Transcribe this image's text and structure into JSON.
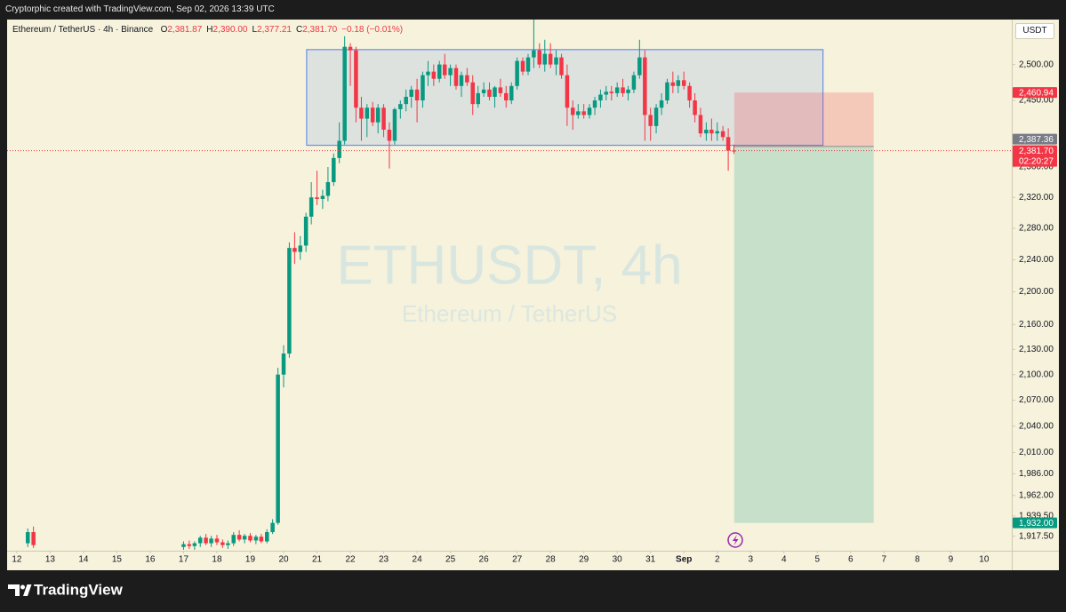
{
  "header": "Cryptorphic created with TradingView.com, Sep 02, 2026 13:39 UTC",
  "brand": "TradingView",
  "chart_data": {
    "type": "candlestick",
    "title": "ETHUSDT, 4h",
    "subtitle": "Ethereum / TetherUS",
    "symbol": "Ethereum / TetherUS · 4h · Binance",
    "ohlc": [
      {
        "key": "O",
        "text": "2,381.87"
      },
      {
        "key": "H",
        "text": "2,390.00"
      },
      {
        "key": "L",
        "text": "2,377.21"
      },
      {
        "key": "C",
        "text": "2,381.70"
      }
    ],
    "change": "−0.18 (−0.01%)",
    "currency": "USDT",
    "up_color": "#089981",
    "down_color": "#f23645",
    "log_scale": true,
    "x": [
      12.33,
      12.5,
      17,
      17.17,
      17.33,
      17.5,
      17.67,
      17.83,
      18,
      18.17,
      18.33,
      18.5,
      18.67,
      18.83,
      19,
      19.17,
      19.33,
      19.5,
      19.67,
      19.83,
      20,
      20.17,
      20.33,
      20.5,
      20.67,
      20.83,
      21,
      21.17,
      21.33,
      21.5,
      21.67,
      21.83,
      22,
      22.17,
      22.33,
      22.5,
      22.67,
      22.83,
      23,
      23.17,
      23.33,
      23.5,
      23.67,
      23.83,
      24,
      24.17,
      24.33,
      24.5,
      24.67,
      24.83,
      25,
      25.17,
      25.33,
      25.5,
      25.67,
      25.83,
      26,
      26.17,
      26.33,
      26.5,
      26.67,
      26.83,
      27,
      27.17,
      27.33,
      27.5,
      27.67,
      27.83,
      28,
      28.17,
      28.33,
      28.5,
      28.67,
      28.83,
      29,
      29.17,
      29.33,
      29.5,
      29.67,
      29.83,
      30,
      30.17,
      30.33,
      30.5,
      30.67,
      30.83,
      31,
      31.17,
      31.33,
      31.5,
      31.67,
      31.83,
      32,
      32.17,
      32.33,
      32.5,
      32.67,
      32.83,
      33,
      33.17,
      33.33,
      33.5
    ],
    "open": [
      1910,
      1922,
      1906,
      1909,
      1907,
      1910,
      1916,
      1910,
      1915,
      1911,
      1908,
      1910,
      1919,
      1914,
      1918,
      1913,
      1917,
      1912,
      1922,
      1932,
      2100,
      2125,
      2255,
      2250,
      2258,
      2295,
      2320,
      2318,
      2322,
      2340,
      2372,
      2395,
      2525,
      2520,
      2440,
      2425,
      2440,
      2420,
      2440,
      2410,
      2395,
      2438,
      2445,
      2455,
      2465,
      2450,
      2485,
      2490,
      2480,
      2500,
      2485,
      2495,
      2470,
      2485,
      2475,
      2445,
      2460,
      2465,
      2455,
      2468,
      2460,
      2450,
      2470,
      2505,
      2490,
      2510,
      2520,
      2500,
      2515,
      2500,
      2510,
      2485,
      2440,
      2430,
      2435,
      2430,
      2440,
      2450,
      2458,
      2462,
      2460,
      2468,
      2460,
      2465,
      2485,
      2510,
      2430,
      2415,
      2440,
      2450,
      2475,
      2470,
      2478,
      2470,
      2450,
      2430,
      2405,
      2410,
      2405,
      2408,
      2400,
      2381.87
    ],
    "high": [
      1926,
      1928,
      1912,
      1913,
      1912,
      1918,
      1920,
      1918,
      1919,
      1914,
      1913,
      1922,
      1924,
      1920,
      1921,
      1919,
      1920,
      1925,
      1936,
      2108,
      2135,
      2262,
      2275,
      2270,
      2300,
      2340,
      2355,
      2330,
      2360,
      2378,
      2420,
      2540,
      2530,
      2525,
      2455,
      2445,
      2448,
      2445,
      2445,
      2420,
      2440,
      2450,
      2465,
      2470,
      2480,
      2490,
      2505,
      2500,
      2505,
      2515,
      2500,
      2500,
      2490,
      2495,
      2485,
      2470,
      2475,
      2475,
      2470,
      2480,
      2470,
      2475,
      2510,
      2510,
      2515,
      2575,
      2530,
      2535,
      2530,
      2520,
      2515,
      2500,
      2450,
      2445,
      2445,
      2445,
      2455,
      2465,
      2470,
      2470,
      2475,
      2480,
      2470,
      2490,
      2535,
      2520,
      2440,
      2445,
      2460,
      2480,
      2490,
      2485,
      2490,
      2475,
      2460,
      2440,
      2420,
      2425,
      2420,
      2415,
      2412,
      2390
    ],
    "low": [
      1906,
      1905,
      1903,
      1904,
      1903,
      1906,
      1908,
      1906,
      1908,
      1905,
      1904,
      1907,
      1912,
      1910,
      1911,
      1909,
      1910,
      1910,
      1920,
      1930,
      2085,
      2120,
      2235,
      2240,
      2250,
      2285,
      2310,
      2305,
      2315,
      2335,
      2365,
      2390,
      2470,
      2420,
      2395,
      2400,
      2415,
      2405,
      2400,
      2358,
      2390,
      2425,
      2435,
      2440,
      2420,
      2440,
      2470,
      2470,
      2475,
      2480,
      2470,
      2465,
      2455,
      2470,
      2430,
      2440,
      2455,
      2450,
      2440,
      2455,
      2440,
      2445,
      2465,
      2485,
      2485,
      2495,
      2495,
      2490,
      2495,
      2485,
      2480,
      2415,
      2410,
      2425,
      2425,
      2425,
      2430,
      2440,
      2450,
      2450,
      2455,
      2455,
      2450,
      2460,
      2480,
      2395,
      2395,
      2405,
      2430,
      2445,
      2460,
      2460,
      2465,
      2440,
      2420,
      2400,
      2395,
      2395,
      2395,
      2395,
      2355,
      2377.21
    ],
    "close": [
      1922,
      1908,
      1909,
      1907,
      1910,
      1916,
      1910,
      1915,
      1911,
      1908,
      1910,
      1919,
      1914,
      1918,
      1913,
      1917,
      1912,
      1922,
      1932,
      2100,
      2125,
      2255,
      2250,
      2258,
      2295,
      2320,
      2318,
      2322,
      2340,
      2372,
      2395,
      2525,
      2520,
      2440,
      2425,
      2440,
      2420,
      2440,
      2410,
      2395,
      2438,
      2445,
      2455,
      2465,
      2450,
      2485,
      2490,
      2480,
      2500,
      2485,
      2495,
      2470,
      2485,
      2475,
      2445,
      2460,
      2465,
      2455,
      2468,
      2460,
      2450,
      2470,
      2505,
      2490,
      2510,
      2520,
      2500,
      2515,
      2500,
      2510,
      2485,
      2440,
      2430,
      2435,
      2430,
      2440,
      2450,
      2458,
      2462,
      2460,
      2468,
      2460,
      2465,
      2485,
      2510,
      2430,
      2415,
      2440,
      2450,
      2475,
      2470,
      2478,
      2470,
      2450,
      2430,
      2405,
      2410,
      2405,
      2408,
      2400,
      2381.87,
      2381.7
    ],
    "xlim": [
      11.71,
      41.83
    ],
    "xticks": [
      12,
      13,
      14,
      15,
      16,
      17,
      18,
      19,
      20,
      21,
      22,
      23,
      24,
      25,
      26,
      27,
      28,
      29,
      30,
      31,
      {
        "value": 32,
        "label": "Sep"
      },
      {
        "value": 33,
        "label": "2"
      },
      {
        "value": 34,
        "label": "3"
      },
      {
        "value": 35,
        "label": "4"
      },
      {
        "value": 36,
        "label": "5"
      },
      {
        "value": 37,
        "label": "6"
      },
      {
        "value": 38,
        "label": "7"
      },
      {
        "value": 39,
        "label": "8"
      },
      {
        "value": 40,
        "label": "9"
      },
      {
        "value": 41,
        "label": "10"
      }
    ],
    "ylim": [
      1902,
      2564
    ],
    "yticks": [
      {
        "value": 2500,
        "label": "2,500.00"
      },
      {
        "value": 2450,
        "label": "2,450.00"
      },
      {
        "value": 2360,
        "label": "2,360.00"
      },
      {
        "value": 2320,
        "label": "2,320.00"
      },
      {
        "value": 2280,
        "label": "2,280.00"
      },
      {
        "value": 2240,
        "label": "2,240.00"
      },
      {
        "value": 2200,
        "label": "2,200.00"
      },
      {
        "value": 2160,
        "label": "2,160.00"
      },
      {
        "value": 2130,
        "label": "2,130.00"
      },
      {
        "value": 2100,
        "label": "2,100.00"
      },
      {
        "value": 2070,
        "label": "2,070.00"
      },
      {
        "value": 2040,
        "label": "2,040.00"
      },
      {
        "value": 2010,
        "label": "2,010.00"
      },
      {
        "value": 1986,
        "label": "1,986.00"
      },
      {
        "value": 1962,
        "label": "1,962.00"
      },
      {
        "value": 1939.5,
        "label": "1,939.50"
      },
      {
        "value": 1917.5,
        "label": "1,917.50"
      }
    ],
    "rectangle": {
      "x": [
        20.69,
        36.17
      ],
      "y": [
        2389,
        2521
      ]
    },
    "position": {
      "x": [
        33.51,
        37.69
      ],
      "entry": 2387.36,
      "stop": 2460.94,
      "target": 1932
    },
    "price_labels": [
      {
        "value": 2460.94,
        "label": "2,460.94",
        "color": "#f23645"
      },
      {
        "value": 2387.36,
        "label": "2,387.36",
        "color": "#787b86"
      },
      {
        "value": 2381.7,
        "label": "2,381.70",
        "color": "#f23645",
        "countdown": "02:20:27"
      },
      {
        "value": 1932,
        "label": "1,932.00",
        "color": "#089981"
      }
    ]
  }
}
